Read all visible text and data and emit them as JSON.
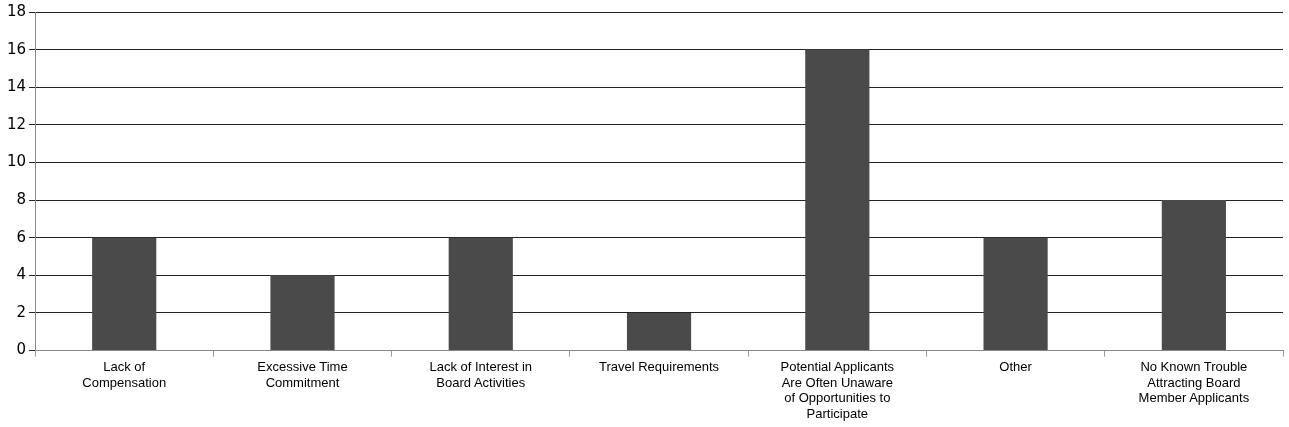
{
  "chart_data": {
    "type": "bar",
    "categories": [
      "Lack of Compensation",
      "Excessive Time Commitment",
      "Lack of Interest in Board Activities",
      "Travel Requirements",
      "Potential Applicants Are Often Unaware of Opportunities to Participate",
      "Other",
      "No Known Trouble Attracting Board Member Applicants"
    ],
    "values": [
      6,
      4,
      6,
      2,
      16,
      6,
      8
    ],
    "color": "#4a4a4a",
    "ylim": [
      0,
      18
    ],
    "yticks": [
      0,
      2,
      4,
      6,
      8,
      10,
      12,
      14,
      16,
      18
    ],
    "grid": "y",
    "legend": false
  }
}
